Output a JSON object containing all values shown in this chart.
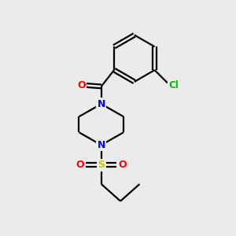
{
  "background_color": "#ebebeb",
  "bond_color": "#000000",
  "atom_colors": {
    "N": "#0000ff",
    "O": "#ff0000",
    "S": "#cccc00",
    "Cl": "#00bb00",
    "C": "#000000"
  },
  "figsize": [
    3.0,
    3.0
  ],
  "dpi": 100,
  "bond_lw": 1.6,
  "font_size": 9
}
